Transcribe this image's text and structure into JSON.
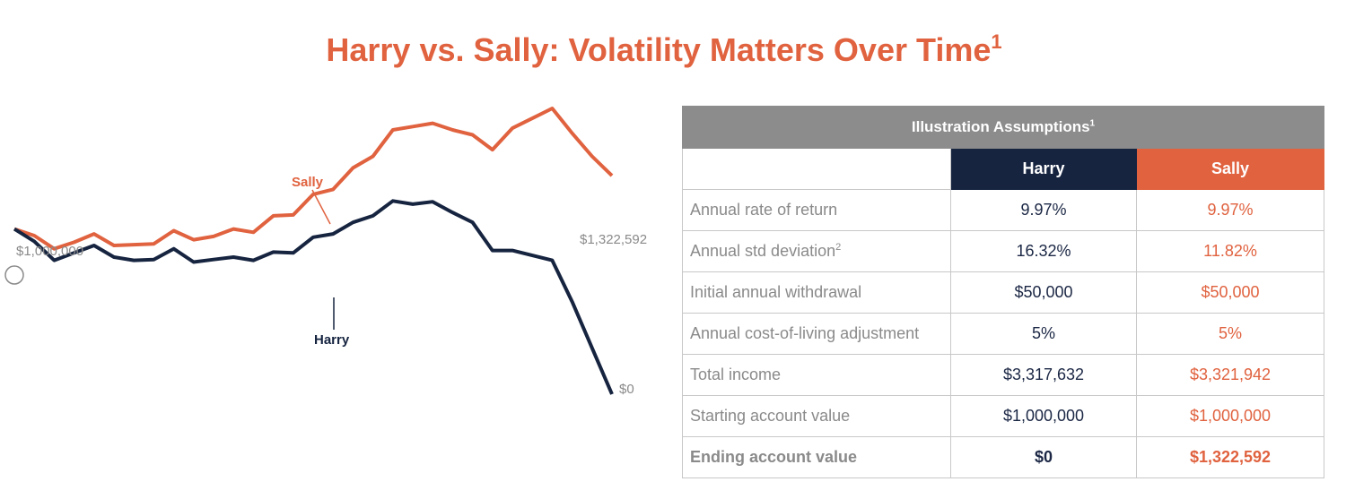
{
  "title": {
    "text": "Harry vs. Sally: Volatility Matters Over Time",
    "sup": "1"
  },
  "colors": {
    "harry": "#162440",
    "sally": "#e0623f",
    "muted": "#8a8a8a",
    "header_gray": "#8c8c8c"
  },
  "chart_data": {
    "type": "line",
    "title": "Harry vs. Sally: Volatility Matters Over Time",
    "xlabel": "",
    "ylabel": "",
    "ylim": [
      0,
      1700000
    ],
    "grid": false,
    "x": [
      0,
      1,
      2,
      3,
      4,
      5,
      6,
      7,
      8,
      9,
      10,
      11,
      12,
      13,
      14,
      15,
      16,
      17,
      18,
      19,
      20,
      21,
      22,
      23,
      24,
      25,
      26,
      27,
      28,
      29,
      30
    ],
    "series": [
      {
        "name": "Sally",
        "values": [
          1000000,
          960000,
          880000,
          920000,
          970000,
          900000,
          905000,
          910000,
          990000,
          935000,
          955000,
          1000000,
          980000,
          1080000,
          1085000,
          1210000,
          1240000,
          1370000,
          1440000,
          1600000,
          1620000,
          1640000,
          1600000,
          1570000,
          1480000,
          1610000,
          1670000,
          1730000,
          1580000,
          1440000,
          1322592
        ]
      },
      {
        "name": "Harry",
        "values": [
          1000000,
          925000,
          810000,
          855000,
          900000,
          830000,
          810000,
          815000,
          880000,
          800000,
          815000,
          830000,
          810000,
          860000,
          855000,
          950000,
          970000,
          1040000,
          1080000,
          1170000,
          1150000,
          1165000,
          1100000,
          1040000,
          870000,
          870000,
          840000,
          810000,
          560000,
          280000,
          0
        ]
      }
    ],
    "annotations": {
      "start_value": "$1,000,000",
      "sally_end": "$1,322,592",
      "harry_end": "$0",
      "sally_label": "Sally",
      "harry_label": "Harry"
    }
  },
  "table": {
    "caption": "Illustration Assumptions",
    "caption_sup": "1",
    "headers": {
      "harry": "Harry",
      "sally": "Sally"
    },
    "rows": [
      {
        "label": "Annual rate of return",
        "sup": "",
        "harry": "9.97%",
        "sally": "9.97%"
      },
      {
        "label": "Annual std deviation",
        "sup": "2",
        "harry": "16.32%",
        "sally": "11.82%"
      },
      {
        "label": "Initial annual withdrawal",
        "sup": "",
        "harry": "$50,000",
        "sally": "$50,000"
      },
      {
        "label": "Annual cost-of-living adjustment",
        "sup": "",
        "harry": "5%",
        "sally": "5%"
      },
      {
        "label": "Total income",
        "sup": "",
        "harry": "$3,317,632",
        "sally": "$3,321,942"
      },
      {
        "label": "Starting account value",
        "sup": "",
        "harry": "$1,000,000",
        "sally": "$1,000,000"
      },
      {
        "label": "Ending account value",
        "sup": "",
        "harry": "$0",
        "sally": "$1,322,592"
      }
    ]
  }
}
